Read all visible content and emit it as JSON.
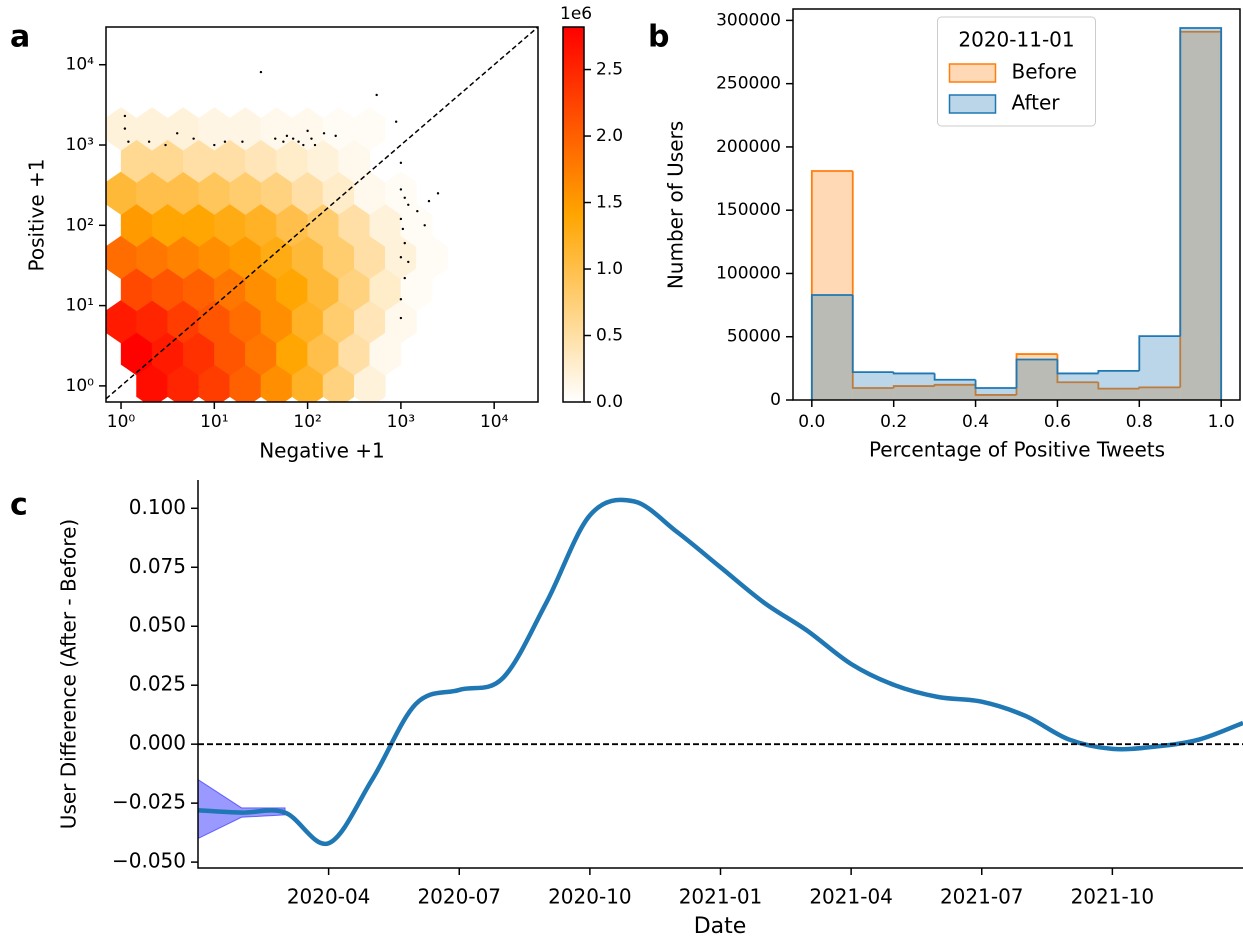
{
  "chart_data": [
    {
      "type": "hexbin",
      "panel_label": "a",
      "xlabel": "Negative +1",
      "ylabel": "Positive +1",
      "xscale": "log",
      "yscale": "log",
      "xlim": [
        0.69,
        29500
      ],
      "ylim": [
        0.63,
        29500
      ],
      "xticks": [
        {
          "value": 1,
          "label": "10⁰"
        },
        {
          "value": 10,
          "label": "10¹"
        },
        {
          "value": 100,
          "label": "10²"
        },
        {
          "value": 1000,
          "label": "10³"
        },
        {
          "value": 10000,
          "label": "10⁴"
        }
      ],
      "yticks": [
        {
          "value": 1,
          "label": "10⁰"
        },
        {
          "value": 10,
          "label": "10¹"
        },
        {
          "value": 100,
          "label": "10²"
        },
        {
          "value": 1000,
          "label": "10³"
        },
        {
          "value": 10000,
          "label": "10⁴"
        }
      ],
      "diagonal": true,
      "hexes": {
        "x": [
          2.15,
          4.64,
          10,
          21.5,
          46.4,
          100,
          215,
          464,
          1.47,
          3.16,
          6.81,
          14.7,
          31.6,
          68.1,
          147,
          316,
          681,
          1,
          2.15,
          4.64,
          10,
          21.5,
          46.4,
          100,
          215,
          464,
          1000,
          1.47,
          3.16,
          6.81,
          14.7,
          31.6,
          68.1,
          147,
          316,
          681,
          1468,
          1,
          2.15,
          4.64,
          10,
          21.5,
          46.4,
          100,
          215,
          464,
          1000,
          2154,
          1.47,
          3.16,
          6.81,
          14.7,
          31.6,
          68.1,
          147,
          316,
          681,
          1468,
          1,
          2.15,
          4.64,
          10,
          21.5,
          46.4,
          100,
          215,
          464,
          1000,
          1.47,
          3.16,
          6.81,
          14.7,
          31.6,
          68.1,
          147,
          316,
          1,
          2.15,
          4.64,
          10,
          21.5,
          46.4,
          100,
          215,
          464
        ],
        "y": [
          1,
          1,
          1,
          1,
          1,
          1,
          1,
          1,
          2.51,
          2.51,
          2.51,
          2.51,
          2.51,
          2.51,
          2.51,
          2.51,
          2.51,
          6.31,
          6.31,
          6.31,
          6.31,
          6.31,
          6.31,
          6.31,
          6.31,
          6.31,
          6.31,
          15.8,
          15.8,
          15.8,
          15.8,
          15.8,
          15.8,
          15.8,
          15.8,
          15.8,
          15.8,
          39.8,
          39.8,
          39.8,
          39.8,
          39.8,
          39.8,
          39.8,
          39.8,
          39.8,
          39.8,
          39.8,
          100,
          100,
          100,
          100,
          100,
          100,
          100,
          100,
          100,
          100,
          251,
          251,
          251,
          251,
          251,
          251,
          251,
          251,
          251,
          251,
          631,
          631,
          631,
          631,
          631,
          631,
          631,
          631,
          1585,
          1585,
          1585,
          1585,
          1585,
          1585,
          1585,
          1585,
          1585
        ],
        "values": [
          2700000,
          2500000,
          2300000,
          2000000,
          1600000,
          1200000,
          700000,
          200000,
          2800000,
          2600000,
          2400000,
          2100000,
          1800000,
          1400000,
          1000000,
          500000,
          100000,
          2600000,
          2500000,
          2300000,
          2100000,
          1900000,
          1600000,
          1200000,
          800000,
          400000,
          100000,
          2200000,
          2100000,
          2000000,
          1800000,
          1600000,
          1400000,
          1100000,
          700000,
          300000,
          50000,
          1900000,
          1800000,
          1700000,
          1600000,
          1500000,
          1300000,
          1100000,
          800000,
          500000,
          200000,
          50000,
          1500000,
          1400000,
          1400000,
          1300000,
          1200000,
          1000000,
          800000,
          500000,
          200000,
          50000,
          1100000,
          1000000,
          1000000,
          900000,
          800000,
          700000,
          500000,
          300000,
          100000,
          50000,
          600000,
          600000,
          500000,
          500000,
          400000,
          300000,
          200000,
          100000,
          200000,
          200000,
          200000,
          150000,
          150000,
          100000,
          100000,
          50000,
          50000
        ]
      },
      "outliers": {
        "color": "#000000",
        "x": [
          1.1,
          1.1,
          1.2,
          2,
          3,
          4,
          6,
          10,
          13,
          20,
          31.6,
          45,
          55,
          60,
          70,
          80,
          90,
          100,
          110,
          120,
          150,
          200,
          550,
          890,
          1000,
          1000,
          1100,
          1200,
          1000,
          1050,
          1100,
          1000,
          1200,
          1100,
          1000,
          1000,
          1500,
          2000,
          2500,
          1800
        ],
        "y": [
          2300,
          1600,
          1100,
          1100,
          1000,
          1400,
          1200,
          1000,
          1100,
          1100,
          8100,
          1200,
          1100,
          1300,
          1200,
          1100,
          1000,
          1500,
          1200,
          1000,
          1400,
          1300,
          4200,
          1950,
          600,
          280,
          220,
          180,
          120,
          90,
          60,
          40,
          35,
          22,
          12,
          7,
          150,
          200,
          250,
          100
        ]
      },
      "colorbar": {
        "clim": [
          0,
          2820000
        ],
        "offset_label": "1e6",
        "colormap": [
          "#ffffff",
          "#ffa500",
          "#ff0000"
        ],
        "ticks": [
          {
            "value": 0,
            "label": "0.0"
          },
          {
            "value": 500000,
            "label": "0.5"
          },
          {
            "value": 1000000,
            "label": "1.0"
          },
          {
            "value": 1500000,
            "label": "1.5"
          },
          {
            "value": 2000000,
            "label": "2.0"
          },
          {
            "value": 2500000,
            "label": "2.5"
          }
        ]
      }
    },
    {
      "type": "histogram",
      "panel_label": "b",
      "xlabel": "Percentage of Positive Tweets",
      "ylabel": "Number of Users",
      "bins": [
        0,
        0.1,
        0.2,
        0.3,
        0.4,
        0.5,
        0.6,
        0.7,
        0.8,
        0.9,
        1.0
      ],
      "xlim": [
        -0.046,
        1.046
      ],
      "ylim": [
        0,
        309000
      ],
      "xticks": [
        {
          "value": 0,
          "label": "0.0"
        },
        0.2,
        0.4,
        0.6,
        0.8,
        {
          "value": 1,
          "label": "1.0"
        }
      ],
      "yticks": [
        0,
        50000,
        100000,
        150000,
        200000,
        250000,
        300000
      ],
      "legend_title": "2020-11-01",
      "legend": "upper center",
      "fill_opacity": 0.3,
      "series": [
        {
          "name": "Before",
          "color": "#ff7f0e",
          "values": [
            181000,
            9500,
            11000,
            12000,
            4000,
            36300,
            14000,
            9000,
            10000,
            291000
          ]
        },
        {
          "name": "After",
          "color": "#1f77b4",
          "values": [
            83000,
            22000,
            21000,
            16000,
            9500,
            32000,
            21000,
            23000,
            50500,
            294000
          ]
        }
      ]
    },
    {
      "type": "line",
      "panel_label": "c",
      "xlabel": "Date",
      "ylabel": "User Difference (After - Before)",
      "x": [
        "2020-01",
        "2020-02",
        "2020-03",
        "2020-04",
        "2020-05",
        "2020-06",
        "2020-07",
        "2020-08",
        "2020-09",
        "2020-10",
        "2020-11",
        "2020-12",
        "2021-01",
        "2021-02",
        "2021-03",
        "2021-04",
        "2021-05",
        "2021-06",
        "2021-07",
        "2021-08",
        "2021-09",
        "2021-10",
        "2021-11",
        "2021-12",
        "2022-01"
      ],
      "xlim": [
        "2020-01",
        "2022-01"
      ],
      "xticks": [
        "2020-04",
        "2020-07",
        "2020-10",
        "2021-01",
        "2021-04",
        "2021-07",
        "2021-10"
      ],
      "ylim": [
        -0.0525,
        0.112
      ],
      "yticks": [
        {
          "value": -0.05,
          "label": "−0.050"
        },
        {
          "value": -0.025,
          "label": "−0.025"
        },
        {
          "value": 0,
          "label": "0.000"
        },
        {
          "value": 0.025,
          "label": "0.025"
        },
        {
          "value": 0.05,
          "label": "0.050"
        },
        {
          "value": 0.075,
          "label": "0.075"
        },
        {
          "value": 0.1,
          "label": "0.100"
        }
      ],
      "reference_line": 0,
      "series": [
        {
          "color": "#1f77b4",
          "band_color": "#0000ff",
          "values": [
            -0.028,
            -0.029,
            -0.029,
            -0.042,
            -0.015,
            0.017,
            0.023,
            0.028,
            0.06,
            0.097,
            0.103,
            0.09,
            0.075,
            0.06,
            0.048,
            0.034,
            0.025,
            0.02,
            0.018,
            0.012,
            0.002,
            -0.002,
            -0.001,
            0.002,
            0.009
          ],
          "band_lower": [
            -0.04,
            -0.031,
            -0.03,
            null,
            null,
            null,
            null,
            null,
            null,
            null,
            null,
            null,
            null,
            null,
            null,
            null,
            null,
            null,
            null,
            null,
            null,
            null,
            null,
            null,
            null
          ],
          "band_upper": [
            -0.015,
            -0.027,
            -0.027,
            null,
            null,
            null,
            null,
            null,
            null,
            null,
            null,
            null,
            null,
            null,
            null,
            null,
            null,
            null,
            null,
            null,
            null,
            null,
            null,
            null,
            null
          ]
        }
      ]
    }
  ]
}
